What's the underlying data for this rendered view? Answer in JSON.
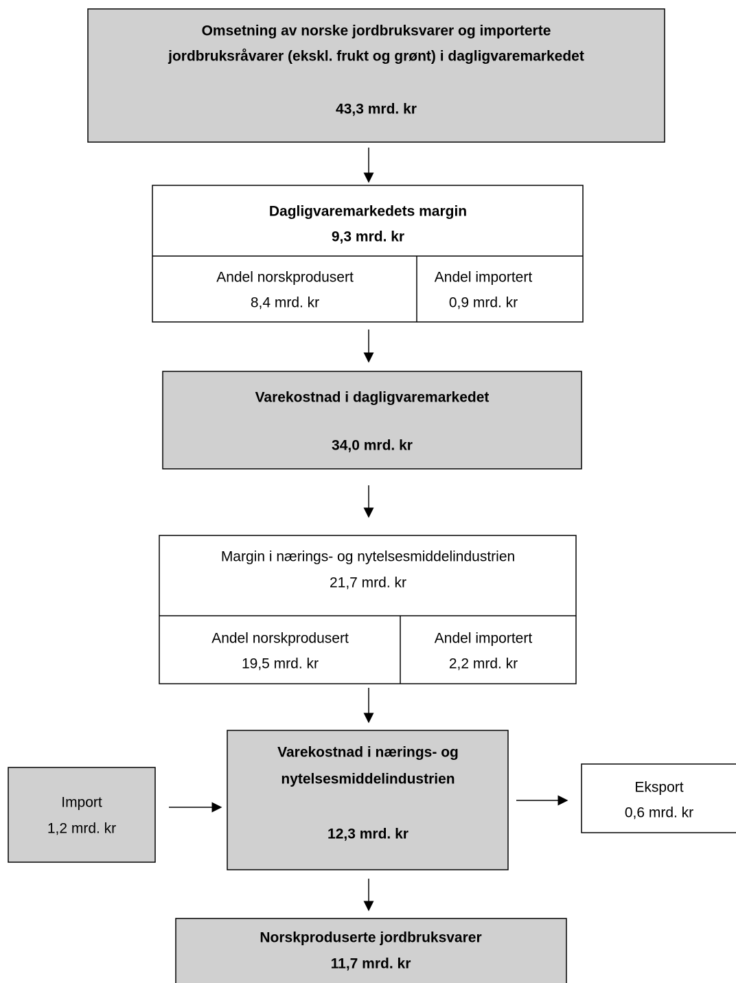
{
  "total": {
    "lines": [
      "Omsetning av norske jordbruksvarer og importerte",
      "jordbruksråvarer (ekskl. frukt og grønt) i dagligvaremarkedet",
      "43,3 mrd. kr"
    ]
  },
  "retail_margin": {
    "lines": [
      "Dagligvaremarkedets margin",
      "9,3 mrd. kr"
    ],
    "split": [
      {
        "lines": [
          "Andel norskprodusert",
          "8,4 mrd. kr"
        ]
      },
      {
        "lines": [
          "Andel importert",
          "0,9 mrd. kr"
        ]
      }
    ]
  },
  "retail_cost": {
    "lines": [
      "Varekostnad i dagligvaremarkedet",
      "34,0 mrd. kr"
    ]
  },
  "industry_margin": {
    "lines": [
      "Margin i nærings- og nytelsesmiddelindustrien",
      "21,7 mrd. kr"
    ],
    "split": [
      {
        "lines": [
          "Andel norskprodusert",
          "19,5 mrd. kr"
        ]
      },
      {
        "lines": [
          "Andel importert",
          "2,2 mrd. kr"
        ]
      }
    ]
  },
  "industry_cost": {
    "lines": [
      "Varekostnad i nærings- og",
      "nytelsesmiddelindustrien",
      "12,3 mrd. kr"
    ]
  },
  "import": {
    "lines": [
      "Import",
      "1,2 mrd. kr"
    ]
  },
  "export": {
    "lines": [
      "Eksport",
      "0,6 mrd. kr"
    ]
  },
  "domestic": {
    "lines": [
      "Norskproduserte jordbruksvarer",
      "11,7 mrd. kr"
    ]
  }
}
